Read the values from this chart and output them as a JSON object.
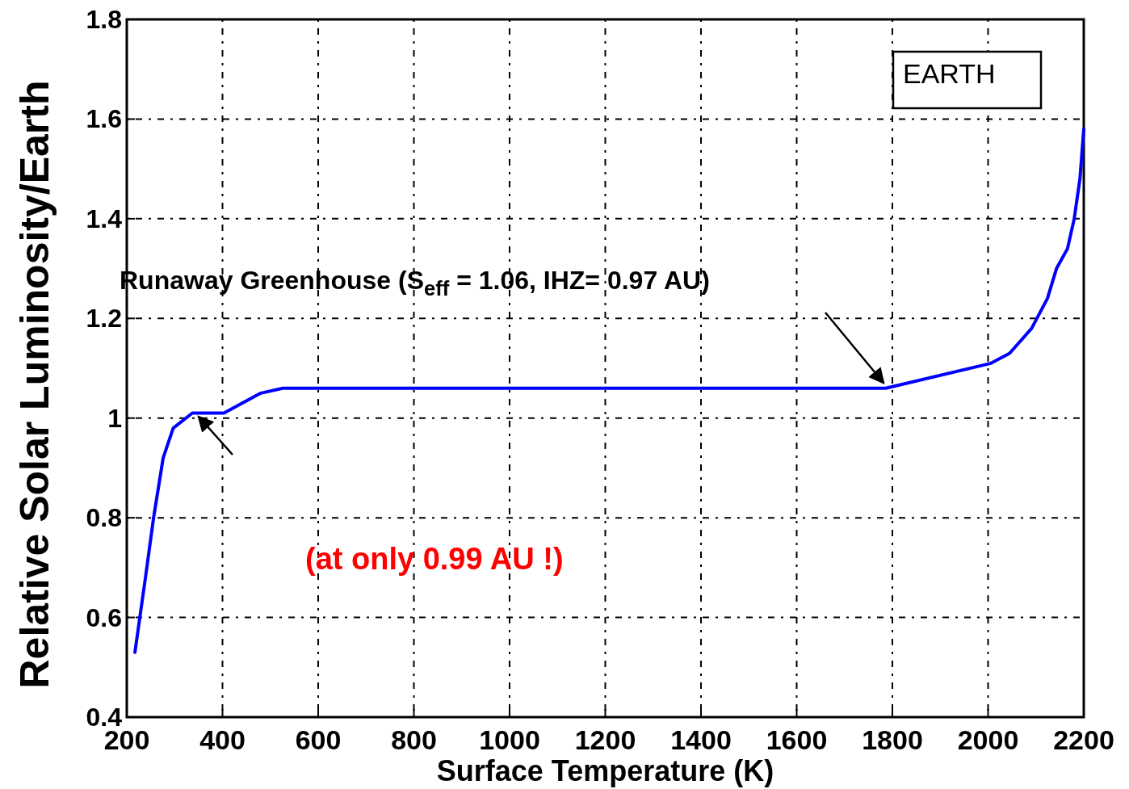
{
  "chart_data": {
    "type": "line",
    "xlabel": "Surface Temperature (K)",
    "ylabel": "Relative Solar Luminosity/Earth",
    "xlim": [
      200,
      2200
    ],
    "xticks": [
      200,
      400,
      600,
      800,
      1000,
      1200,
      1400,
      1600,
      1800,
      2000,
      2200
    ],
    "ylim": [
      0.4,
      1.8
    ],
    "yticks": [
      0.4,
      0.6,
      0.8,
      1,
      1.2,
      1.4,
      1.6,
      1.8
    ],
    "grid": true,
    "line_style": "solid",
    "marker": "none",
    "series": [
      {
        "color": "#0000ff",
        "x": [
          217,
          239,
          256,
          276,
          297,
          337,
          403,
          441,
          480,
          526,
          599,
          800,
          1000,
          1200,
          1400,
          1600,
          1786,
          2006,
          2045,
          2091,
          2124,
          2143,
          2166,
          2180,
          2192,
          2200
        ],
        "values": [
          0.53,
          0.68,
          0.8,
          0.92,
          0.98,
          1.01,
          1.01,
          1.03,
          1.05,
          1.06,
          1.06,
          1.06,
          1.06,
          1.06,
          1.06,
          1.06,
          1.06,
          1.11,
          1.13,
          1.18,
          1.24,
          1.3,
          1.34,
          1.4,
          1.48,
          1.58
        ]
      }
    ],
    "annotations": [
      "Runaway Greenhouse (S$_{eff}$ = 1.06,  IHZ= 0.97 AU)",
      "(at only 0.99 AU !)",
      "EARTH"
    ]
  }
}
